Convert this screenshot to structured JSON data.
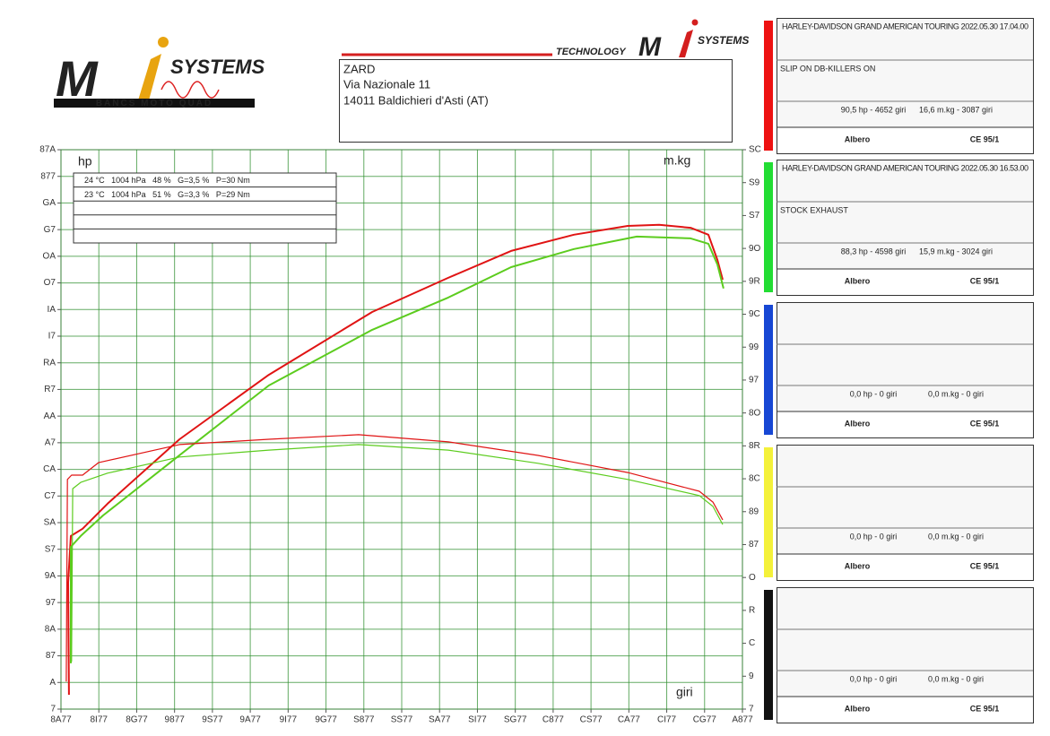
{
  "header": {
    "logo": {
      "mark": "M",
      "name": "SYSTEMS",
      "tagline": "BANCS MOTO QUAD"
    },
    "logo2": {
      "tech": "TECHNOLOGY",
      "mark": "M",
      "name": "SYSTEMS"
    },
    "address": [
      "ZARD",
      "Via Nazionale 11",
      "14011 Baldichieri d'Asti (AT)"
    ]
  },
  "conditions": [
    "24 °C   1004 hPa   48 %   G=3,5 %   P=30 Nm",
    "23 °C   1004 hPa   51 %   G=3,3 %   P=29 Nm"
  ],
  "chart_data": {
    "type": "line",
    "ylabel": "hp",
    "y2label": "m.kg",
    "xlabel": "giri",
    "grid": true,
    "xlim": [
      0,
      18
    ],
    "xticks": [
      {
        "value": 0,
        "label": "8A77"
      },
      {
        "value": 1,
        "label": "8I77"
      },
      {
        "value": 2,
        "label": "8G77"
      },
      {
        "value": 3,
        "label": "9877"
      },
      {
        "value": 4,
        "label": "9S77"
      },
      {
        "value": 5,
        "label": "9A77"
      },
      {
        "value": 6,
        "label": "9I77"
      },
      {
        "value": 7,
        "label": "9G77"
      },
      {
        "value": 8,
        "label": "S877"
      },
      {
        "value": 9,
        "label": "SS77"
      },
      {
        "value": 10,
        "label": "SA77"
      },
      {
        "value": 11,
        "label": "SI77"
      },
      {
        "value": 12,
        "label": "SG77"
      },
      {
        "value": 13,
        "label": "C877"
      },
      {
        "value": 14,
        "label": "CS77"
      },
      {
        "value": 15,
        "label": "CA77"
      },
      {
        "value": 16,
        "label": "CI77"
      },
      {
        "value": 17,
        "label": "CG77"
      },
      {
        "value": 18,
        "label": "A877"
      }
    ],
    "ylim": [
      0,
      21
    ],
    "yticks": [
      {
        "value": 0,
        "label": "7"
      },
      {
        "value": 1,
        "label": "A"
      },
      {
        "value": 2,
        "label": "87"
      },
      {
        "value": 3,
        "label": "8A"
      },
      {
        "value": 4,
        "label": "97"
      },
      {
        "value": 5,
        "label": "9A"
      },
      {
        "value": 6,
        "label": "S7"
      },
      {
        "value": 7,
        "label": "SA"
      },
      {
        "value": 8,
        "label": "C7"
      },
      {
        "value": 9,
        "label": "CA"
      },
      {
        "value": 10,
        "label": "A7"
      },
      {
        "value": 11,
        "label": "AA"
      },
      {
        "value": 12,
        "label": "R7"
      },
      {
        "value": 13,
        "label": "RA"
      },
      {
        "value": 14,
        "label": "I7"
      },
      {
        "value": 15,
        "label": "IA"
      },
      {
        "value": 16,
        "label": "O7"
      },
      {
        "value": 17,
        "label": "OA"
      },
      {
        "value": 18,
        "label": "G7"
      },
      {
        "value": 19,
        "label": "GA"
      },
      {
        "value": 20,
        "label": "877"
      },
      {
        "value": 21,
        "label": "87A"
      }
    ],
    "y2lim": [
      0,
      17
    ],
    "y2ticks": [
      {
        "value": 0,
        "label": "7"
      },
      {
        "value": 1,
        "label": "9"
      },
      {
        "value": 2,
        "label": "C"
      },
      {
        "value": 3,
        "label": "R"
      },
      {
        "value": 4,
        "label": "O"
      },
      {
        "value": 5,
        "label": "87"
      },
      {
        "value": 6,
        "label": "89"
      },
      {
        "value": 7,
        "label": "8C"
      },
      {
        "value": 8,
        "label": "8R"
      },
      {
        "value": 9,
        "label": "8O"
      },
      {
        "value": 10,
        "label": "97"
      },
      {
        "value": 11,
        "label": "99"
      },
      {
        "value": 12,
        "label": "9C"
      },
      {
        "value": 13,
        "label": "9R"
      },
      {
        "value": 14,
        "label": "9O"
      },
      {
        "value": 15,
        "label": "S7"
      },
      {
        "value": 16,
        "label": "S9"
      },
      {
        "value": 17,
        "label": "SC"
      }
    ],
    "series": [
      {
        "color": "#e01414",
        "x": [
          0.21,
          0.19,
          0.26,
          0.57,
          1.23,
          3.13,
          5.49,
          8.22,
          10.23,
          11.89,
          13.55,
          14.97,
          15.8,
          16.63,
          17.1,
          17.34,
          17.48
        ],
        "values": [
          0.54,
          4.75,
          6.5,
          6.77,
          7.71,
          10.13,
          12.55,
          14.91,
          16.19,
          17.2,
          17.81,
          18.14,
          18.18,
          18.07,
          17.81,
          16.86,
          16.12
        ]
      },
      {
        "color": "#5ccc1e",
        "x": [
          0.26,
          0.26,
          0.52,
          1.11,
          3.13,
          5.49,
          8.22,
          10.23,
          11.89,
          13.55,
          15.21,
          16.63,
          17.1,
          17.34,
          17.5
        ],
        "values": [
          1.72,
          6.09,
          6.5,
          7.27,
          9.53,
          12.15,
          14.24,
          15.45,
          16.59,
          17.27,
          17.74,
          17.67,
          17.47,
          16.69,
          15.79
        ]
      },
      {
        "color": "#e01414",
        "axis": "y2",
        "x": [
          0.14,
          0.17,
          0.28,
          0.57,
          0.99,
          3.13,
          5.49,
          7.86,
          10.23,
          12.6,
          14.97,
          16.86,
          17.22,
          17.48
        ],
        "values": [
          0.84,
          6.98,
          7.11,
          7.11,
          7.49,
          8.04,
          8.2,
          8.34,
          8.12,
          7.71,
          7.19,
          6.62,
          6.29,
          5.75
        ]
      },
      {
        "color": "#5ccc1e",
        "axis": "y2",
        "x": [
          0.28,
          0.31,
          0.52,
          1.23,
          3.13,
          5.49,
          7.86,
          10.23,
          12.6,
          14.97,
          16.86,
          17.22,
          17.48
        ],
        "values": [
          1.44,
          6.7,
          6.89,
          7.17,
          7.66,
          7.87,
          8.04,
          7.87,
          7.47,
          6.98,
          6.49,
          6.16,
          5.61
        ]
      }
    ]
  },
  "panels": [
    {
      "color": "#ee1111",
      "title": "HARLEY-DAVIDSON GRAND AMERICAN TOURING 2022.05.30 17.04.00",
      "description": "SLIP ON DB-KILLERS ON",
      "power": "90,5 hp - 4652 giri",
      "torque": "16,6 m.kg - 3087 giri",
      "shaft": "Albero",
      "standard": "CE 95/1"
    },
    {
      "color": "#22dd33",
      "title": "HARLEY-DAVIDSON GRAND AMERICAN TOURING 2022.05.30 16.53.00",
      "description": "STOCK EXHAUST",
      "power": "88,3 hp - 4598 giri",
      "torque": "15,9 m.kg - 3024 giri",
      "shaft": "Albero",
      "standard": "CE 95/1"
    },
    {
      "color": "#1747d4",
      "power": "0,0 hp - 0 giri",
      "torque": "0,0 m.kg - 0 giri",
      "shaft": "Albero",
      "standard": "CE 95/1"
    },
    {
      "color": "#f4f13a",
      "power": "0,0 hp - 0 giri",
      "torque": "0,0 m.kg - 0 giri",
      "shaft": "Albero",
      "standard": "CE 95/1"
    },
    {
      "color": "#111111",
      "power": "0,0 hp - 0 giri",
      "torque": "0,0 m.kg - 0 giri",
      "shaft": "Albero",
      "standard": "CE 95/1"
    }
  ]
}
